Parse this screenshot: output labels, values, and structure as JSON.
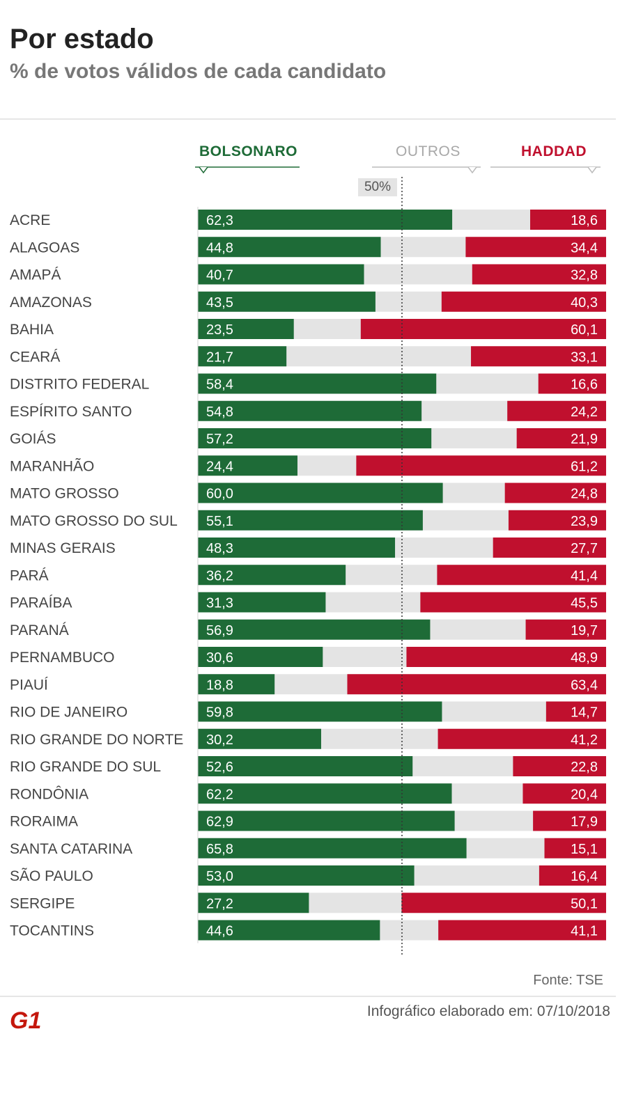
{
  "header": {
    "title": "Por estado",
    "subtitle": "% de votos válidos de cada candidato"
  },
  "legend": {
    "bolsonaro": "BOLSONARO",
    "outros": "OUTROS",
    "haddad": "HADDAD"
  },
  "reference_label": "50%",
  "footer": {
    "source": "Fonte: TSE",
    "credit": "Infográfico elaborado em: 07/10/2018",
    "logo_text": "G1"
  },
  "colors": {
    "bolsonaro": "#1e6b37",
    "outros": "#e4e4e4",
    "haddad": "#c0102e",
    "logo": "#c4170c"
  },
  "chart_data": {
    "type": "bar",
    "orientation": "horizontal",
    "stacked": true,
    "xlim": [
      0,
      100
    ],
    "reference_line": 50,
    "categories": [
      "ACRE",
      "ALAGOAS",
      "AMAPÁ",
      "AMAZONAS",
      "BAHIA",
      "CEARÁ",
      "DISTRITO FEDERAL",
      "ESPÍRITO SANTO",
      "GOIÁS",
      "MARANHÃO",
      "MATO GROSSO",
      "MATO GROSSO DO SUL",
      "MINAS GERAIS",
      "PARÁ",
      "PARAÍBA",
      "PARANÁ",
      "PERNAMBUCO",
      "PIAUÍ",
      "RIO DE JANEIRO",
      "RIO GRANDE DO NORTE",
      "RIO GRANDE DO SUL",
      "RONDÔNIA",
      "RORAIMA",
      "SANTA CATARINA",
      "SÃO PAULO",
      "SERGIPE",
      "TOCANTINS"
    ],
    "series": [
      {
        "name": "BOLSONARO",
        "values": [
          62.3,
          44.8,
          40.7,
          43.5,
          23.5,
          21.7,
          58.4,
          54.8,
          57.2,
          24.4,
          60.0,
          55.1,
          48.3,
          36.2,
          31.3,
          56.9,
          30.6,
          18.8,
          59.8,
          30.2,
          52.6,
          62.2,
          62.9,
          65.8,
          53.0,
          27.2,
          44.6
        ]
      },
      {
        "name": "HADDAD",
        "values": [
          18.6,
          34.4,
          32.8,
          40.3,
          60.1,
          33.1,
          16.6,
          24.2,
          21.9,
          61.2,
          24.8,
          23.9,
          27.7,
          41.4,
          45.5,
          19.7,
          48.9,
          63.4,
          14.7,
          41.2,
          22.8,
          20.4,
          17.9,
          15.1,
          16.4,
          50.1,
          41.1
        ]
      }
    ],
    "labels": {
      "BOLSONARO": [
        "62,3",
        "44,8",
        "40,7",
        "43,5",
        "23,5",
        "21,7",
        "58,4",
        "54,8",
        "57,2",
        "24,4",
        "60,0",
        "55,1",
        "48,3",
        "36,2",
        "31,3",
        "56,9",
        "30,6",
        "18,8",
        "59,8",
        "30,2",
        "52,6",
        "62,2",
        "62,9",
        "65,8",
        "53,0",
        "27,2",
        "44,6"
      ],
      "HADDAD": [
        "18,6",
        "34,4",
        "32,8",
        "40,3",
        "60,1",
        "33,1",
        "16,6",
        "24,2",
        "21,9",
        "61,2",
        "24,8",
        "23,9",
        "27,7",
        "41,4",
        "45,5",
        "19,7",
        "48,9",
        "63,4",
        "14,7",
        "41,2",
        "22,8",
        "20,4",
        "17,9",
        "15,1",
        "16,4",
        "50,1",
        "41,1"
      ]
    }
  }
}
